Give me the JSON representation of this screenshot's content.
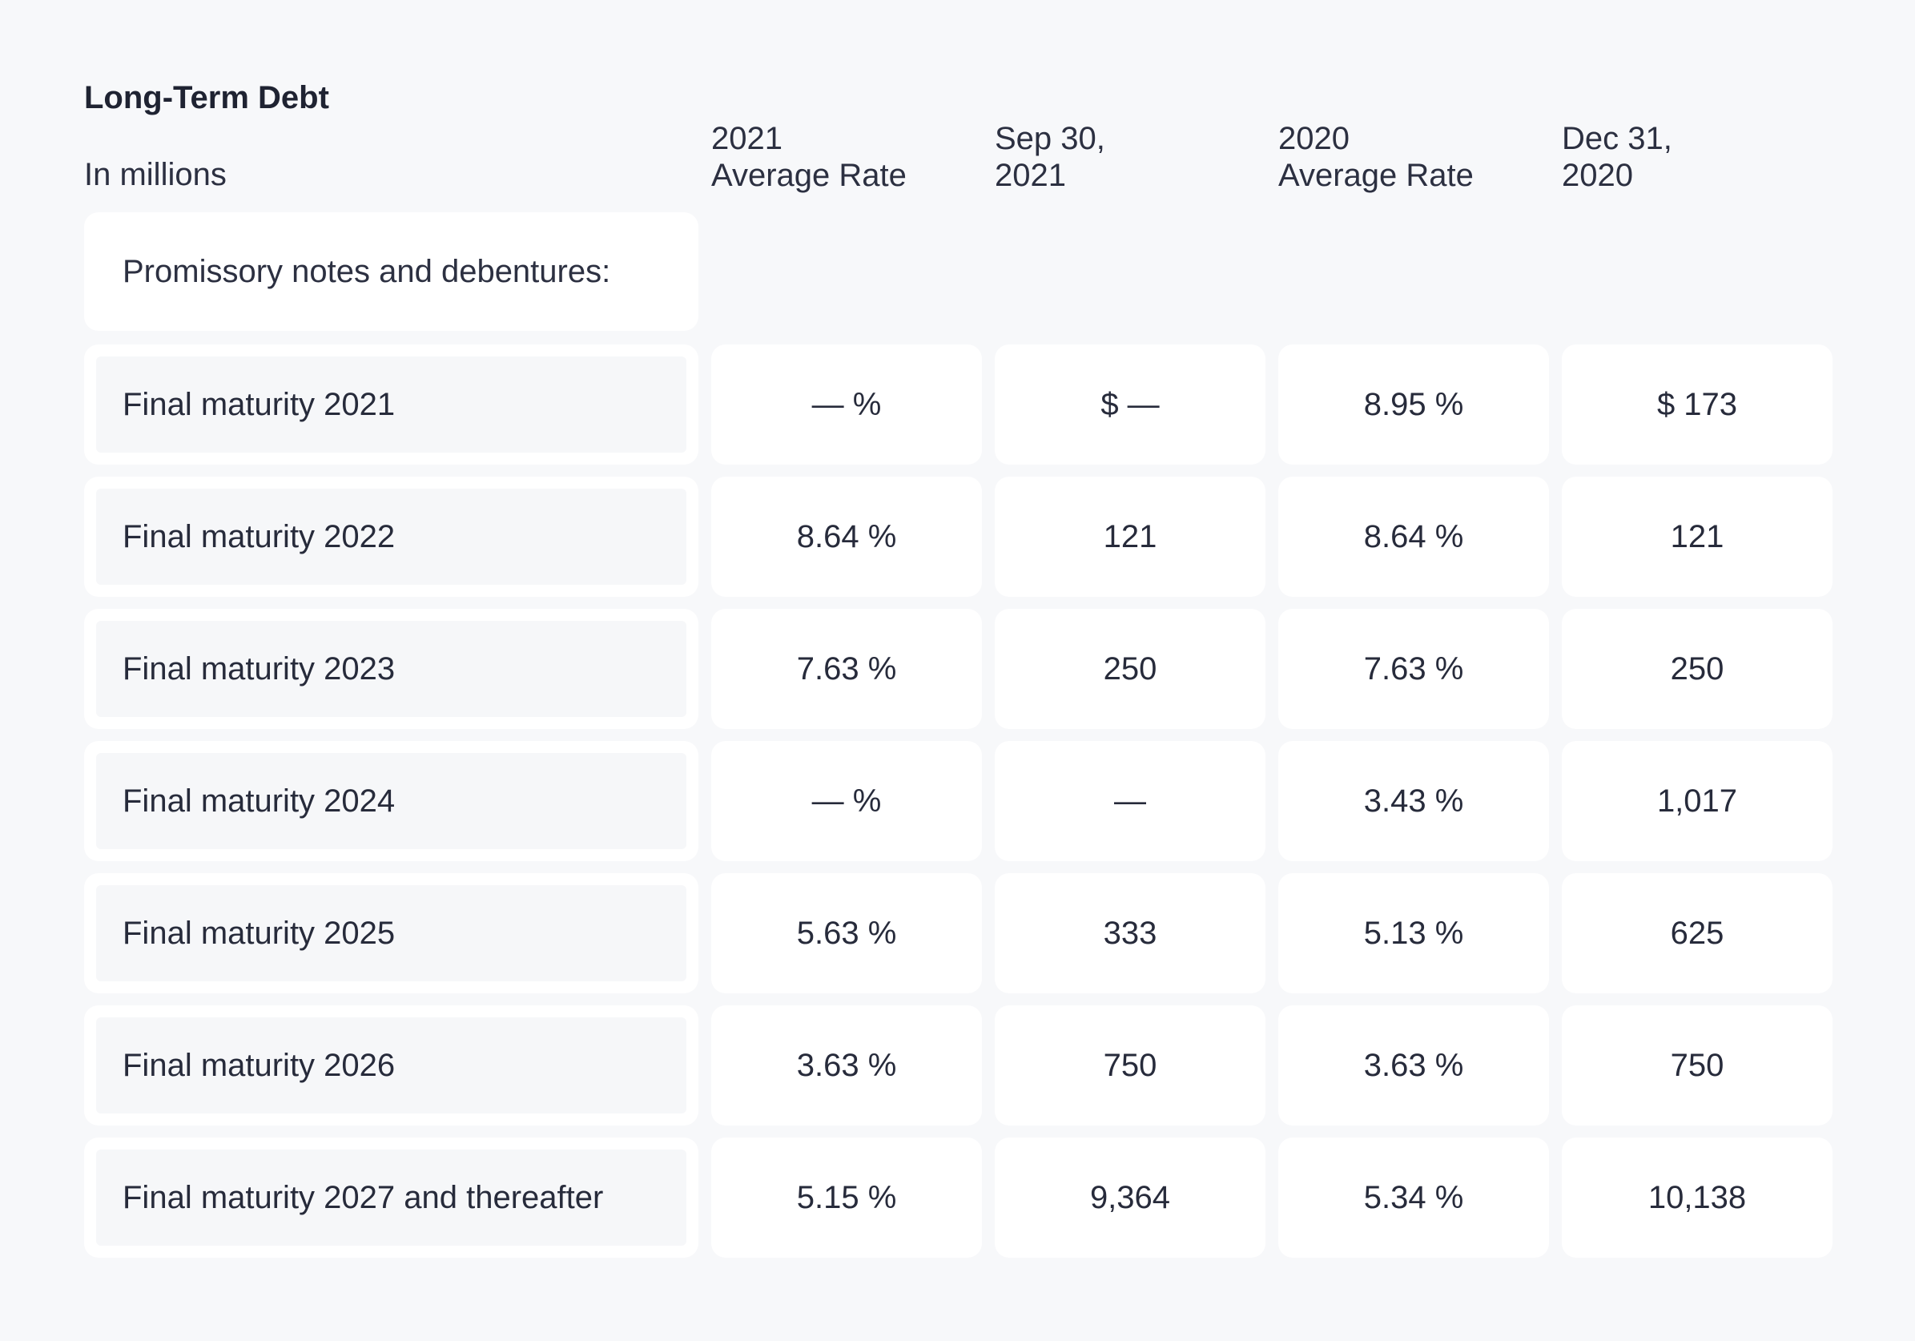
{
  "table": {
    "title": "Long-Term Debt",
    "units": "In millions",
    "columns": [
      {
        "line1": "2021",
        "line2": "Average Rate"
      },
      {
        "line1": "Sep 30,",
        "line2": "2021"
      },
      {
        "line1": "2020",
        "line2": "Average Rate"
      },
      {
        "line1": "Dec 31,",
        "line2": "2020"
      }
    ],
    "section_label": "Promissory notes and debentures:",
    "rows": [
      {
        "label": "Final maturity 2021",
        "values": [
          "— %",
          "$ —",
          "8.95 %",
          "$ 173"
        ]
      },
      {
        "label": "Final maturity 2022",
        "values": [
          "8.64 %",
          "121",
          "8.64 %",
          "121"
        ]
      },
      {
        "label": "Final maturity 2023",
        "values": [
          "7.63 %",
          "250",
          "7.63 %",
          "250"
        ]
      },
      {
        "label": "Final maturity 2024",
        "values": [
          "— %",
          "—",
          "3.43 %",
          "1,017"
        ]
      },
      {
        "label": "Final maturity 2025",
        "values": [
          "5.63 %",
          "333",
          "5.13 %",
          "625"
        ]
      },
      {
        "label": "Final maturity 2026",
        "values": [
          "3.63 %",
          "750",
          "3.63 %",
          "750"
        ]
      },
      {
        "label": "Final maturity 2027 and thereafter",
        "values": [
          "5.15 %",
          "9,364",
          "5.34 %",
          "10,138"
        ]
      }
    ]
  }
}
